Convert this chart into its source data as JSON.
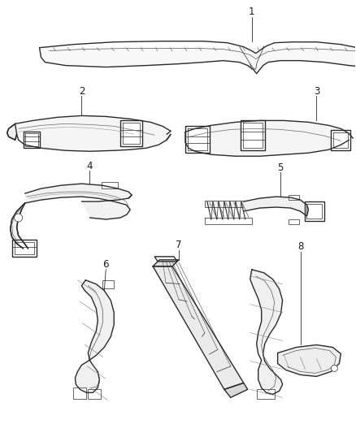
{
  "background_color": "#ffffff",
  "line_color": "#2a2a2a",
  "label_color": "#1a1a1a",
  "fig_width": 4.38,
  "fig_height": 5.33,
  "dpi": 100,
  "font_size": 8.5,
  "lw_main": 1.0,
  "lw_thin": 0.5,
  "lw_detail": 0.35
}
